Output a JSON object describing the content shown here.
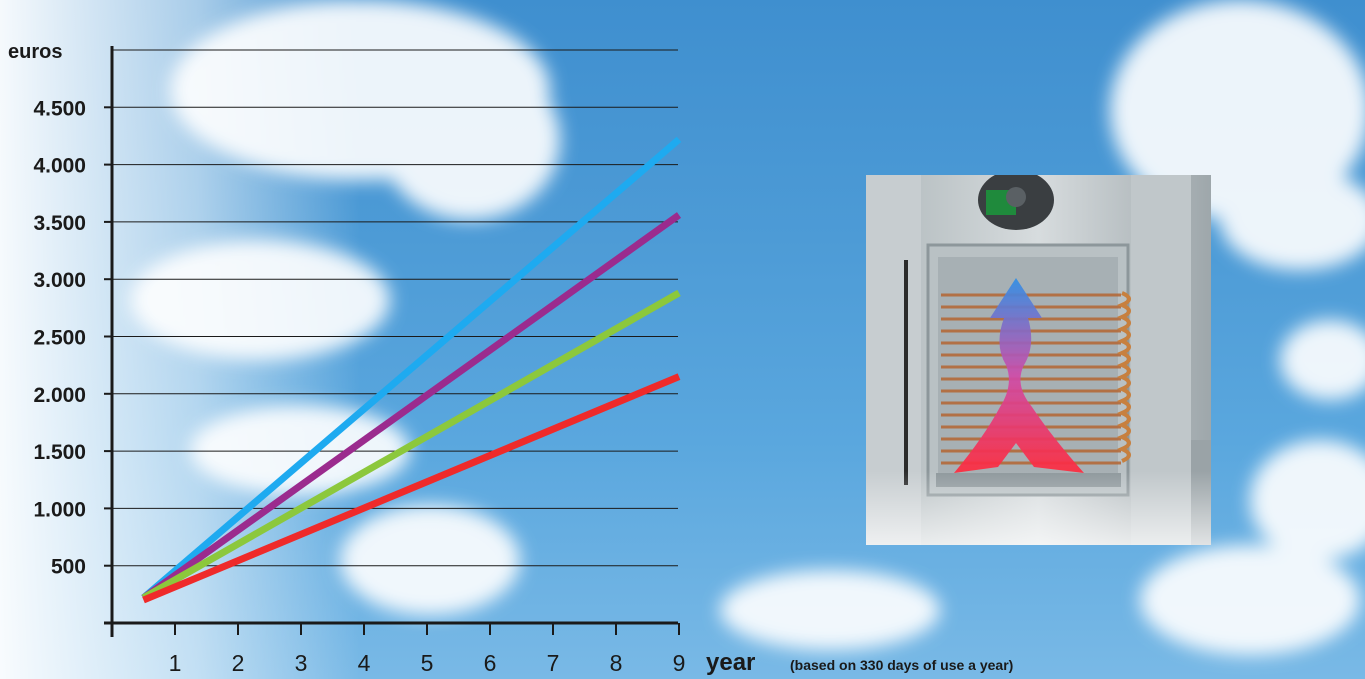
{
  "chart_data": {
    "type": "line",
    "ylabel": "euros",
    "xlabel": "year",
    "note": "(based on 330 days of use a year)",
    "x_ticks": [
      "1",
      "2",
      "3",
      "4",
      "5",
      "6",
      "7",
      "8",
      "9"
    ],
    "y_ticks": [
      "500",
      "1.000",
      "1.500",
      "2.000",
      "2.500",
      "3.000",
      "3.500",
      "4.000",
      "4.500"
    ],
    "xlim": [
      0,
      9
    ],
    "ylim": [
      0,
      5000
    ],
    "grid": true,
    "series": [
      {
        "color": "#1eaaf0",
        "x": [
          0.5,
          9
        ],
        "y": [
          220,
          4220
        ]
      },
      {
        "color": "#9b2b8e",
        "x": [
          0.5,
          9
        ],
        "y": [
          220,
          3560
        ]
      },
      {
        "color": "#8cc83c",
        "x": [
          0.5,
          9
        ],
        "y": [
          220,
          2880
        ]
      },
      {
        "color": "#ef2a2a",
        "x": [
          0.5,
          9
        ],
        "y": [
          200,
          2150
        ]
      }
    ]
  },
  "illustration": {
    "icon": "heat-exchanger-coil-icon",
    "arrow_colors": [
      "#ff3040",
      "#3a8fe0"
    ]
  }
}
